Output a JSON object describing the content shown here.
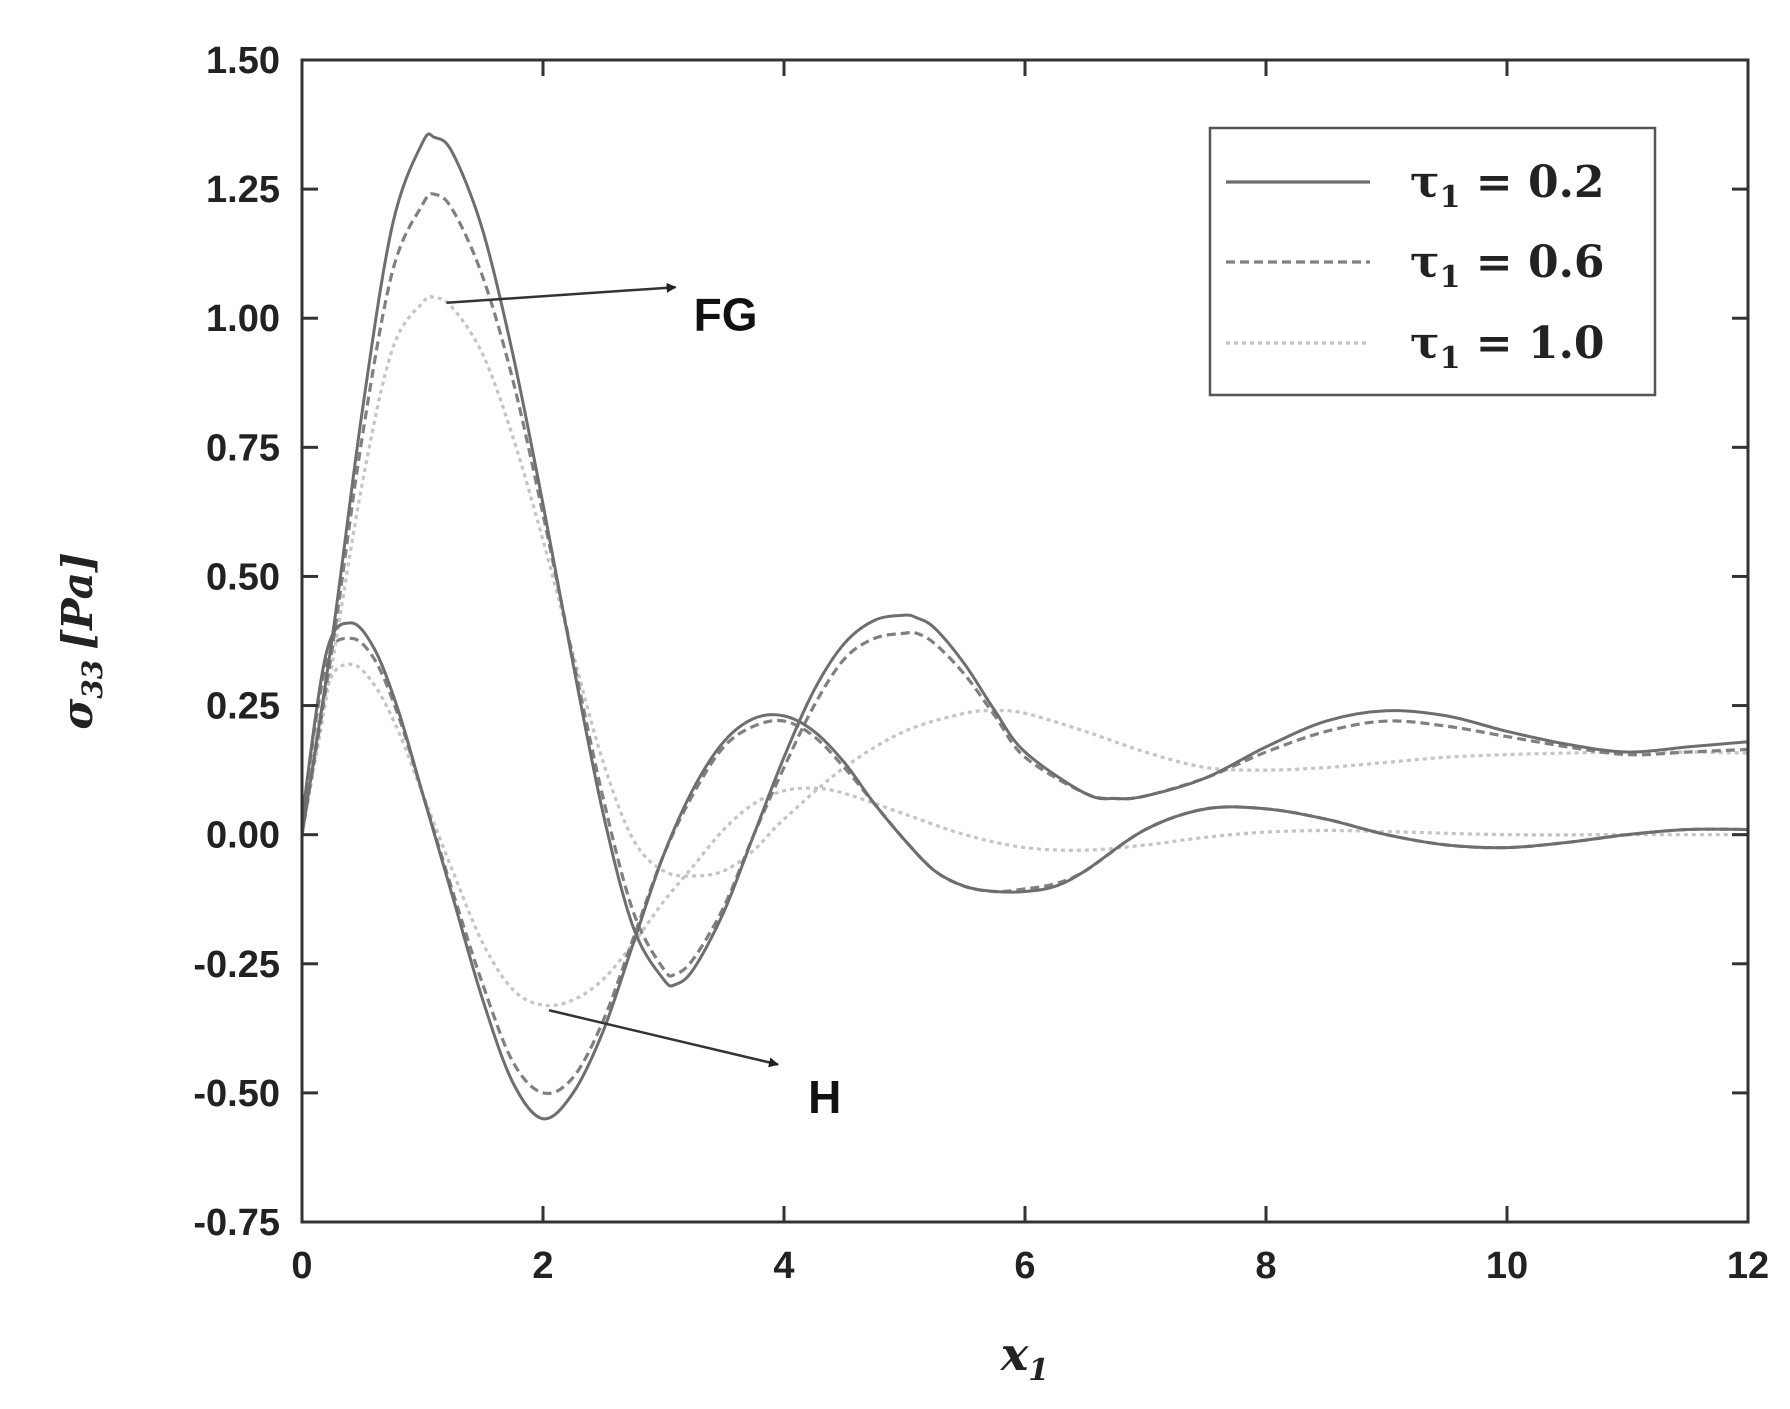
{
  "chart_data": {
    "type": "line",
    "title": "",
    "xlabel": "x",
    "xlabel_sub": "1",
    "ylabel": "σ",
    "ylabel_sub": "33",
    "ylabel_unit": "[Pa]",
    "xlim": [
      0,
      12
    ],
    "ylim": [
      -0.75,
      1.5
    ],
    "x_ticks": [
      "0",
      "2",
      "4",
      "6",
      "8",
      "10",
      "12"
    ],
    "y_ticks": [
      "1.50",
      "1.25",
      "1.00",
      "0.75",
      "0.50",
      "0.25",
      "0.00",
      "-0.25",
      "-0.50",
      "-0.75"
    ],
    "grid": false,
    "legend": {
      "placement": "top-right",
      "entries": [
        {
          "label": "τ₁ = 0.2",
          "label_sym": "τ",
          "label_sub": "1",
          "label_rest": " = 0.2",
          "style": "solid",
          "color": "#6e6e6e"
        },
        {
          "label": "τ₁ = 0.6",
          "label_sym": "τ",
          "label_sub": "1",
          "label_rest": " = 0.6",
          "style": "dashed",
          "color": "#808080"
        },
        {
          "label": "τ₁ = 1.0",
          "label_sym": "τ",
          "label_sub": "1",
          "label_rest": " = 1.0",
          "style": "dotted",
          "color": "#c4c4c4"
        }
      ]
    },
    "annotations": [
      {
        "text": "FG",
        "from": [
          1.2,
          1.03
        ],
        "to": [
          3.1,
          1.06
        ],
        "label_at": [
          3.25,
          1.0
        ]
      },
      {
        "text": "H",
        "from": [
          2.05,
          -0.34
        ],
        "to": [
          3.95,
          -0.445
        ],
        "label_at": [
          4.2,
          -0.515
        ]
      }
    ],
    "series": [
      {
        "group": "FG",
        "tau": 0.2,
        "style": "solid",
        "color": "#6e6e6e",
        "x": [
          0,
          0.25,
          0.5,
          0.75,
          1.0,
          1.1,
          1.25,
          1.5,
          1.75,
          2.0,
          2.25,
          2.5,
          2.75,
          3.0,
          3.1,
          3.25,
          3.5,
          3.75,
          4.0,
          4.25,
          4.5,
          4.75,
          5.0,
          5.1,
          5.25,
          5.5,
          5.75,
          6.0,
          6.5,
          6.75,
          7.0,
          7.5,
          8.0,
          8.5,
          9.0,
          9.5,
          10.0,
          10.5,
          11.0,
          11.5,
          12.0
        ],
        "y": [
          0.0,
          0.38,
          0.82,
          1.18,
          1.34,
          1.35,
          1.32,
          1.17,
          0.93,
          0.64,
          0.33,
          0.04,
          -0.18,
          -0.28,
          -0.29,
          -0.26,
          -0.15,
          0.0,
          0.15,
          0.28,
          0.37,
          0.415,
          0.425,
          0.42,
          0.4,
          0.33,
          0.24,
          0.16,
          0.08,
          0.07,
          0.075,
          0.11,
          0.17,
          0.22,
          0.24,
          0.23,
          0.2,
          0.175,
          0.16,
          0.17,
          0.18
        ]
      },
      {
        "group": "FG",
        "tau": 0.6,
        "style": "dashed",
        "color": "#808080",
        "x": [
          0,
          0.25,
          0.5,
          0.75,
          1.0,
          1.1,
          1.25,
          1.5,
          1.75,
          2.0,
          2.25,
          2.5,
          2.75,
          3.0,
          3.1,
          3.25,
          3.5,
          3.75,
          4.0,
          4.25,
          4.5,
          4.75,
          5.0,
          5.1,
          5.25,
          5.5,
          5.75,
          6.0,
          6.5,
          6.75,
          7.0,
          7.5,
          8.0,
          8.5,
          9.0,
          9.5,
          10.0,
          10.5,
          11.0,
          11.5,
          12.0
        ],
        "y": [
          0.0,
          0.36,
          0.77,
          1.09,
          1.22,
          1.24,
          1.21,
          1.08,
          0.88,
          0.62,
          0.34,
          0.07,
          -0.15,
          -0.26,
          -0.27,
          -0.24,
          -0.14,
          0.0,
          0.13,
          0.25,
          0.34,
          0.38,
          0.39,
          0.39,
          0.37,
          0.31,
          0.23,
          0.15,
          0.08,
          0.07,
          0.075,
          0.11,
          0.16,
          0.2,
          0.22,
          0.21,
          0.19,
          0.17,
          0.155,
          0.16,
          0.165
        ]
      },
      {
        "group": "FG",
        "tau": 1.0,
        "style": "dotted",
        "color": "#c4c4c4",
        "x": [
          0,
          0.25,
          0.5,
          0.75,
          1.0,
          1.1,
          1.25,
          1.5,
          1.75,
          2.0,
          2.25,
          2.5,
          2.75,
          3.0,
          3.25,
          3.5,
          3.75,
          4.0,
          4.5,
          5.0,
          5.5,
          5.75,
          6.0,
          6.5,
          7.0,
          7.5,
          8.0,
          8.5,
          9.0,
          9.5,
          10.0,
          10.5,
          11.0,
          11.5,
          12.0
        ],
        "y": [
          0.0,
          0.33,
          0.68,
          0.94,
          1.03,
          1.04,
          1.02,
          0.93,
          0.77,
          0.57,
          0.35,
          0.14,
          -0.01,
          -0.07,
          -0.08,
          -0.07,
          -0.03,
          0.03,
          0.13,
          0.2,
          0.235,
          0.24,
          0.235,
          0.2,
          0.16,
          0.13,
          0.125,
          0.13,
          0.14,
          0.15,
          0.155,
          0.158,
          0.16,
          0.16,
          0.158
        ]
      },
      {
        "group": "H",
        "tau": 0.2,
        "style": "solid",
        "color": "#6e6e6e",
        "x": [
          0,
          0.2,
          0.4,
          0.6,
          0.8,
          1.0,
          1.25,
          1.5,
          1.75,
          2.0,
          2.25,
          2.5,
          2.75,
          3.0,
          3.25,
          3.5,
          3.75,
          4.0,
          4.25,
          4.5,
          4.75,
          5.0,
          5.25,
          5.5,
          5.75,
          6.0,
          6.25,
          6.5,
          7.0,
          7.5,
          8.0,
          8.5,
          9.0,
          9.5,
          10.0,
          10.5,
          11.0,
          11.5,
          12.0
        ],
        "y": [
          0.03,
          0.35,
          0.41,
          0.36,
          0.24,
          0.08,
          -0.12,
          -0.32,
          -0.48,
          -0.55,
          -0.5,
          -0.38,
          -0.21,
          -0.04,
          0.09,
          0.18,
          0.225,
          0.23,
          0.2,
          0.14,
          0.06,
          -0.01,
          -0.07,
          -0.1,
          -0.11,
          -0.11,
          -0.1,
          -0.07,
          0.01,
          0.05,
          0.05,
          0.03,
          0.0,
          -0.02,
          -0.025,
          -0.015,
          0.0,
          0.01,
          0.01
        ]
      },
      {
        "group": "H",
        "tau": 0.6,
        "style": "dashed",
        "color": "#808080",
        "x": [
          0,
          0.2,
          0.4,
          0.6,
          0.8,
          1.0,
          1.25,
          1.5,
          1.75,
          2.0,
          2.25,
          2.5,
          2.75,
          3.0,
          3.25,
          3.5,
          3.75,
          4.0,
          4.25,
          4.5,
          4.75,
          5.0,
          5.25,
          5.5,
          5.75,
          6.0,
          6.25,
          6.5,
          7.0,
          7.5,
          8.0,
          8.5,
          9.0,
          9.5,
          10.0,
          10.5,
          11.0,
          11.5,
          12.0
        ],
        "y": [
          0.03,
          0.33,
          0.38,
          0.34,
          0.23,
          0.08,
          -0.11,
          -0.29,
          -0.44,
          -0.5,
          -0.47,
          -0.36,
          -0.2,
          -0.04,
          0.08,
          0.17,
          0.21,
          0.22,
          0.19,
          0.13,
          0.06,
          -0.01,
          -0.07,
          -0.1,
          -0.11,
          -0.105,
          -0.095,
          -0.07,
          0.01,
          0.05,
          0.05,
          0.03,
          0.0,
          -0.02,
          -0.025,
          -0.015,
          0.0,
          0.01,
          0.01
        ]
      },
      {
        "group": "H",
        "tau": 1.0,
        "style": "dotted",
        "color": "#c4c4c4",
        "x": [
          0,
          0.2,
          0.4,
          0.6,
          0.8,
          1.0,
          1.25,
          1.5,
          1.75,
          2.0,
          2.25,
          2.5,
          2.75,
          3.0,
          3.25,
          3.5,
          3.75,
          4.0,
          4.25,
          4.5,
          5.0,
          5.5,
          6.0,
          6.5,
          7.0,
          7.5,
          8.0,
          8.5,
          9.0,
          10.0,
          11.0,
          12.0
        ],
        "y": [
          0.03,
          0.28,
          0.33,
          0.29,
          0.2,
          0.08,
          -0.07,
          -0.21,
          -0.3,
          -0.33,
          -0.32,
          -0.28,
          -0.21,
          -0.13,
          -0.06,
          0.01,
          0.06,
          0.085,
          0.09,
          0.08,
          0.04,
          0.0,
          -0.025,
          -0.03,
          -0.02,
          -0.005,
          0.005,
          0.008,
          0.006,
          0.0,
          0.0,
          0.0
        ]
      }
    ]
  }
}
